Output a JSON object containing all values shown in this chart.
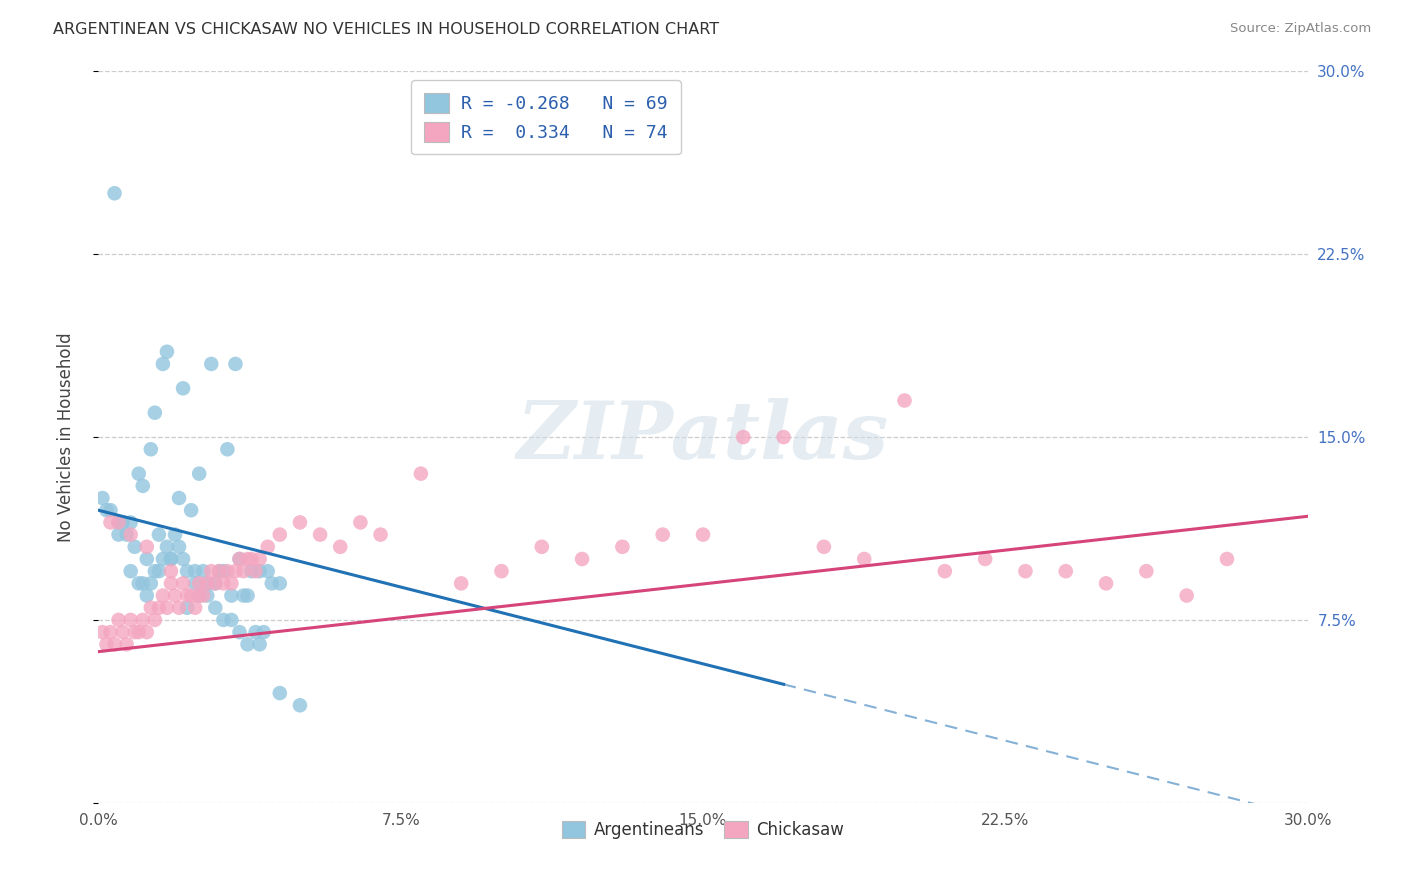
{
  "title": "ARGENTINEAN VS CHICKASAW NO VEHICLES IN HOUSEHOLD CORRELATION CHART",
  "source": "Source: ZipAtlas.com",
  "ylabel_label": "No Vehicles in Household",
  "legend_blue_label": "Argentineans",
  "legend_pink_label": "Chickasaw",
  "legend_line1": "R = -0.268   N = 69",
  "legend_line2": "R =  0.334   N = 74",
  "blue_color": "#92c5de",
  "pink_color": "#f4a6c0",
  "blue_line_color": "#2171b5",
  "pink_line_color": "#d6457a",
  "watermark": "ZIPatlas",
  "xlim": [
    0,
    30
  ],
  "ylim": [
    0,
    30
  ],
  "x_ticks": [
    0,
    7.5,
    15.0,
    22.5,
    30.0
  ],
  "y_ticks": [
    0,
    7.5,
    15.0,
    22.5,
    30.0
  ],
  "right_tick_labels": [
    "",
    "7.5%",
    "15.0%",
    "22.5%",
    "30.0%"
  ],
  "blue_scatter_x": [
    0.4,
    0.5,
    0.7,
    0.8,
    0.9,
    1.0,
    1.1,
    1.2,
    1.3,
    1.4,
    1.5,
    1.6,
    1.7,
    1.8,
    1.9,
    2.0,
    2.1,
    2.2,
    2.3,
    2.4,
    2.5,
    2.6,
    2.7,
    2.8,
    2.9,
    3.0,
    3.1,
    3.2,
    3.3,
    3.4,
    3.5,
    3.6,
    3.7,
    3.8,
    3.9,
    4.0,
    4.1,
    4.2,
    4.3,
    4.5,
    0.1,
    0.2,
    0.3,
    0.5,
    0.6,
    0.8,
    1.0,
    1.1,
    1.2,
    1.3,
    1.4,
    1.5,
    1.6,
    1.7,
    1.8,
    2.0,
    2.1,
    2.2,
    2.4,
    2.5,
    2.7,
    2.9,
    3.1,
    3.3,
    3.5,
    3.7,
    4.0,
    4.5,
    5.0
  ],
  "blue_scatter_y": [
    25.0,
    11.5,
    11.0,
    11.5,
    10.5,
    13.5,
    13.0,
    10.0,
    14.5,
    16.0,
    11.0,
    18.0,
    18.5,
    10.0,
    11.0,
    12.5,
    17.0,
    8.0,
    12.0,
    9.5,
    13.5,
    9.5,
    9.0,
    18.0,
    9.0,
    9.5,
    9.5,
    14.5,
    8.5,
    18.0,
    10.0,
    8.5,
    8.5,
    9.5,
    7.0,
    9.5,
    7.0,
    9.5,
    9.0,
    9.0,
    12.5,
    12.0,
    12.0,
    11.0,
    11.5,
    9.5,
    9.0,
    9.0,
    8.5,
    9.0,
    9.5,
    9.5,
    10.0,
    10.5,
    10.0,
    10.5,
    10.0,
    9.5,
    9.0,
    8.5,
    8.5,
    8.0,
    7.5,
    7.5,
    7.0,
    6.5,
    6.5,
    4.5,
    4.0
  ],
  "pink_scatter_x": [
    0.1,
    0.2,
    0.3,
    0.4,
    0.5,
    0.6,
    0.7,
    0.8,
    0.9,
    1.0,
    1.1,
    1.2,
    1.3,
    1.4,
    1.5,
    1.6,
    1.7,
    1.8,
    1.9,
    2.0,
    2.1,
    2.2,
    2.3,
    2.4,
    2.5,
    2.6,
    2.7,
    2.8,
    2.9,
    3.0,
    3.1,
    3.2,
    3.3,
    3.4,
    3.5,
    3.6,
    3.7,
    3.8,
    3.9,
    4.0,
    4.2,
    4.5,
    5.0,
    5.5,
    6.0,
    6.5,
    7.0,
    8.0,
    9.0,
    10.0,
    11.0,
    12.0,
    13.0,
    14.0,
    15.0,
    16.0,
    17.0,
    18.0,
    19.0,
    20.0,
    21.0,
    22.0,
    23.0,
    24.0,
    25.0,
    26.0,
    27.0,
    28.0,
    0.3,
    0.5,
    0.8,
    1.2,
    1.8,
    2.5
  ],
  "pink_scatter_y": [
    7.0,
    6.5,
    7.0,
    6.5,
    7.5,
    7.0,
    6.5,
    7.5,
    7.0,
    7.0,
    7.5,
    7.0,
    8.0,
    7.5,
    8.0,
    8.5,
    8.0,
    9.0,
    8.5,
    8.0,
    9.0,
    8.5,
    8.5,
    8.0,
    9.0,
    8.5,
    9.0,
    9.5,
    9.0,
    9.5,
    9.0,
    9.5,
    9.0,
    9.5,
    10.0,
    9.5,
    10.0,
    10.0,
    9.5,
    10.0,
    10.5,
    11.0,
    11.5,
    11.0,
    10.5,
    11.5,
    11.0,
    13.5,
    9.0,
    9.5,
    10.5,
    10.0,
    10.5,
    11.0,
    11.0,
    15.0,
    15.0,
    10.5,
    10.0,
    16.5,
    9.5,
    10.0,
    9.5,
    9.5,
    9.0,
    9.5,
    8.5,
    10.0,
    11.5,
    11.5,
    11.0,
    10.5,
    9.5,
    8.5
  ]
}
